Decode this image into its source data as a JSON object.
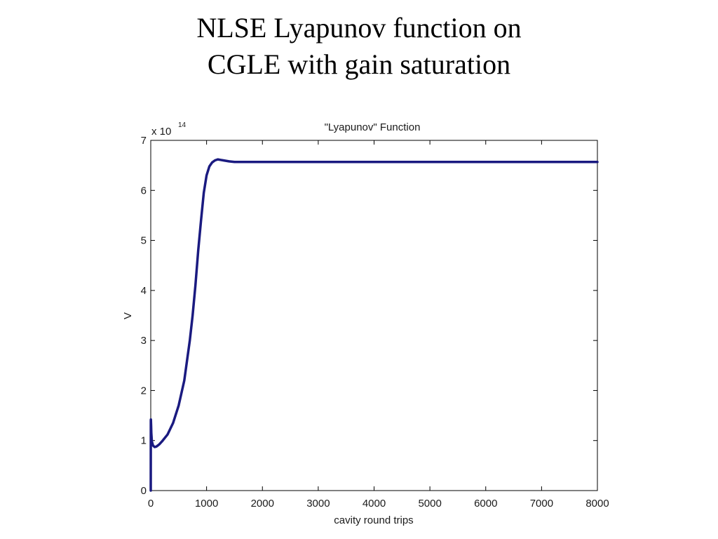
{
  "slide": {
    "title_line1": "NLSE Lyapunov function on",
    "title_line2": "CGLE with gain saturation"
  },
  "chart_data": {
    "type": "line",
    "title": "\"Lyapunov\" Function",
    "xlabel": "cavity round trips",
    "ylabel": "V",
    "y_multiplier_base": "x 10",
    "y_multiplier_exponent": "14",
    "xlim": [
      0,
      8000
    ],
    "ylim": [
      0,
      7
    ],
    "x_ticks": [
      0,
      1000,
      2000,
      3000,
      4000,
      5000,
      6000,
      7000,
      8000
    ],
    "y_ticks": [
      0,
      1,
      2,
      3,
      4,
      5,
      6,
      7
    ],
    "grid": false,
    "line_color": "#1a1a80",
    "series": [
      {
        "x": [
          0,
          1,
          3,
          6,
          10,
          20,
          40,
          70,
          100,
          150,
          200,
          300,
          400,
          500,
          600,
          700,
          750,
          800,
          850,
          900,
          950,
          1000,
          1050,
          1100,
          1150,
          1200,
          1250,
          1300,
          1400,
          1500,
          1600,
          1800,
          2000,
          3000,
          4000,
          5000,
          6000,
          7000,
          8000
        ],
        "y": [
          0,
          1.4,
          1.42,
          1.3,
          1.15,
          0.98,
          0.9,
          0.87,
          0.88,
          0.92,
          0.98,
          1.12,
          1.35,
          1.7,
          2.2,
          3.0,
          3.5,
          4.1,
          4.8,
          5.4,
          5.95,
          6.3,
          6.48,
          6.56,
          6.6,
          6.62,
          6.61,
          6.6,
          6.58,
          6.57,
          6.57,
          6.57,
          6.57,
          6.57,
          6.57,
          6.57,
          6.57,
          6.57,
          6.57
        ]
      }
    ]
  }
}
